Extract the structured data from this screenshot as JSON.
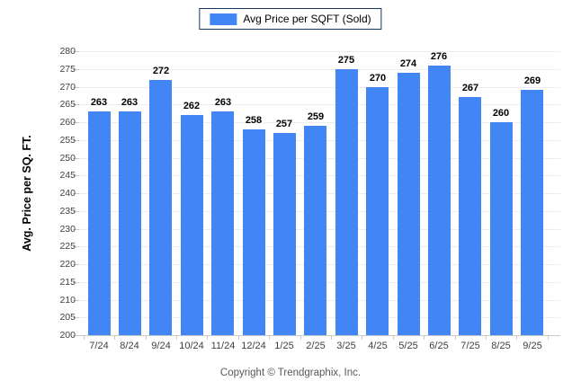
{
  "legend": {
    "label": "Avg Price per SQFT (Sold)"
  },
  "footer": {
    "text": "Copyright © Trendgraphix, Inc."
  },
  "colors": {
    "bar": "#4285f4",
    "legend_border": "#17375e",
    "grid": "#ededed",
    "axis": "#c9c9c9",
    "tick_label": "#3f3f3f"
  },
  "chart_data": {
    "type": "bar",
    "title": "Avg Price per SQFT (Sold)",
    "xlabel": "",
    "ylabel": "Avg. Price per SQ. FT.",
    "categories": [
      "7/24",
      "8/24",
      "9/24",
      "10/24",
      "11/24",
      "12/24",
      "1/25",
      "2/25",
      "3/25",
      "4/25",
      "5/25",
      "6/25",
      "7/25",
      "8/25",
      "9/25"
    ],
    "values": [
      263,
      263,
      272,
      262,
      263,
      258,
      257,
      259,
      275,
      270,
      274,
      276,
      267,
      260,
      269
    ],
    "ylim": [
      200,
      280
    ],
    "ytick_step": 5,
    "grid": true,
    "legend_position": "top",
    "value_labels": true
  }
}
